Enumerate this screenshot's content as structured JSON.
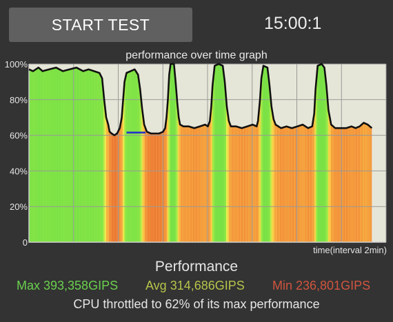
{
  "header": {
    "start_button_label": "START TEST",
    "timer": "15:00:1"
  },
  "chart_data": {
    "type": "line",
    "title": "performance over time graph",
    "xlabel": "time(interval 2min)",
    "ylabel": "",
    "ylim": [
      0,
      100
    ],
    "y_ticks": [
      "0",
      "20%",
      "40%",
      "60%",
      "80%",
      "100%"
    ],
    "grid": true,
    "x_divisions": 8,
    "x_max": 15,
    "x_end": 14.4,
    "series": [
      {
        "values": [
          [
            0,
            97
          ],
          [
            0.3,
            96
          ],
          [
            0.7,
            98
          ],
          [
            1.0,
            96
          ],
          [
            1.5,
            97
          ],
          [
            2.0,
            98
          ],
          [
            2.5,
            96
          ],
          [
            3.0,
            97
          ],
          [
            3.5,
            98
          ],
          [
            4.0,
            96
          ],
          [
            4.4,
            97
          ],
          [
            4.8,
            96
          ],
          [
            5.2,
            95
          ],
          [
            5.4,
            92
          ],
          [
            5.55,
            80
          ],
          [
            5.7,
            70
          ],
          [
            5.85,
            66
          ],
          [
            5.95,
            62
          ],
          [
            6.1,
            61
          ],
          [
            6.3,
            60
          ],
          [
            6.5,
            61
          ],
          [
            6.7,
            64
          ],
          [
            6.85,
            70
          ],
          [
            6.95,
            80
          ],
          [
            7.05,
            90
          ],
          [
            7.2,
            95
          ],
          [
            7.5,
            96
          ],
          [
            7.8,
            97
          ],
          [
            8.05,
            94
          ],
          [
            8.2,
            86
          ],
          [
            8.35,
            75
          ],
          [
            8.5,
            66
          ],
          [
            8.7,
            62
          ],
          [
            9.0,
            61
          ],
          [
            9.3,
            61
          ],
          [
            9.6,
            61
          ],
          [
            9.9,
            62
          ],
          [
            10.05,
            64
          ],
          [
            10.15,
            70
          ],
          [
            10.25,
            80
          ],
          [
            10.35,
            94
          ],
          [
            10.45,
            100
          ],
          [
            10.7,
            100
          ],
          [
            10.82,
            90
          ],
          [
            10.95,
            78
          ],
          [
            11.05,
            70
          ],
          [
            11.15,
            66
          ],
          [
            11.4,
            65
          ],
          [
            11.8,
            65
          ],
          [
            12.2,
            64
          ],
          [
            12.6,
            65
          ],
          [
            13.0,
            66
          ],
          [
            13.2,
            65
          ],
          [
            13.35,
            68
          ],
          [
            13.45,
            76
          ],
          [
            13.55,
            88
          ],
          [
            13.7,
            99
          ],
          [
            14.0,
            100
          ],
          [
            14.3,
            99
          ],
          [
            14.45,
            90
          ],
          [
            14.6,
            76
          ],
          [
            14.75,
            68
          ],
          [
            14.9,
            65
          ],
          [
            15.3,
            65
          ],
          [
            15.7,
            64
          ],
          [
            16.1,
            65
          ],
          [
            16.5,
            66
          ],
          [
            16.8,
            65
          ],
          [
            16.9,
            68
          ],
          [
            17.05,
            80
          ],
          [
            17.15,
            92
          ],
          [
            17.3,
            99
          ],
          [
            17.6,
            98
          ],
          [
            17.75,
            88
          ],
          [
            17.9,
            76
          ],
          [
            18.05,
            69
          ],
          [
            18.2,
            66
          ],
          [
            18.6,
            64
          ],
          [
            19.0,
            65
          ],
          [
            19.4,
            64
          ],
          [
            19.8,
            65
          ],
          [
            20.2,
            66
          ],
          [
            20.6,
            64
          ],
          [
            20.9,
            65
          ],
          [
            21.05,
            72
          ],
          [
            21.15,
            86
          ],
          [
            21.3,
            99
          ],
          [
            21.6,
            100
          ],
          [
            21.8,
            98
          ],
          [
            21.95,
            88
          ],
          [
            22.1,
            74
          ],
          [
            22.3,
            66
          ],
          [
            22.6,
            64
          ],
          [
            23.0,
            64
          ],
          [
            23.4,
            64
          ],
          [
            23.8,
            65
          ],
          [
            24.1,
            64
          ],
          [
            24.4,
            65
          ],
          [
            24.7,
            67
          ],
          [
            25.0,
            66
          ],
          [
            25.3,
            64
          ]
        ]
      }
    ],
    "annotation_dip": {
      "x_from": 7.2,
      "x_to": 8.6,
      "y": 61.5
    }
  },
  "summary": {
    "heading": "Performance",
    "max_label": "Max 393,358GIPS",
    "avg_label": "Avg 314,686GIPS",
    "min_label": "Min 236,801GIPS",
    "throttle_text": "CPU throttled to 62% of its max performance"
  },
  "colors": {
    "background": "#333333",
    "plot_background": "#e6e6d8",
    "grid": "#999999",
    "line": "#111111",
    "dip_highlight": "#2233cc",
    "max_text": "#6ad14e",
    "avg_text": "#b7c44a",
    "min_text": "#d0553f"
  }
}
